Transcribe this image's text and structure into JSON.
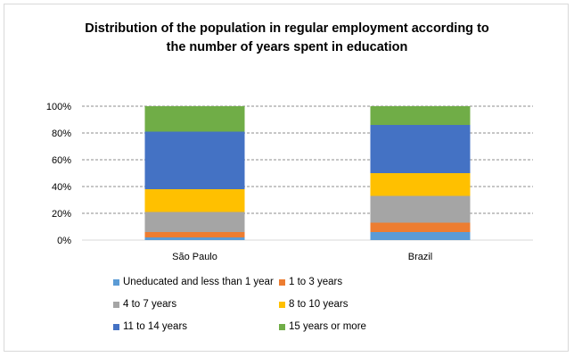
{
  "chart_data": {
    "type": "bar",
    "stacked": true,
    "percent_stacked": true,
    "title_line1": "Distribution of the population in regular employment according to",
    "title_line2": "the number of years spent in education",
    "categories": [
      "São Paulo",
      "Brazil"
    ],
    "series": [
      {
        "name": "Uneducated and less than 1 year",
        "color": "#5b9bd5",
        "values": [
          2,
          6
        ]
      },
      {
        "name": "1 to 3 years",
        "color": "#ed7d31",
        "values": [
          4,
          7
        ]
      },
      {
        "name": "4 to 7 years",
        "color": "#a5a5a5",
        "values": [
          15,
          20
        ]
      },
      {
        "name": "8 to 10 years",
        "color": "#ffc000",
        "values": [
          17,
          17
        ]
      },
      {
        "name": "11 to 14 years",
        "color": "#4472c4",
        "values": [
          43,
          36
        ]
      },
      {
        "name": "15 years or more",
        "color": "#70ad47",
        "values": [
          19,
          14
        ]
      }
    ],
    "yticks": [
      "0%",
      "20%",
      "40%",
      "60%",
      "80%",
      "100%"
    ],
    "ylim": [
      0,
      100
    ],
    "grid": true,
    "legend_position": "bottom"
  }
}
